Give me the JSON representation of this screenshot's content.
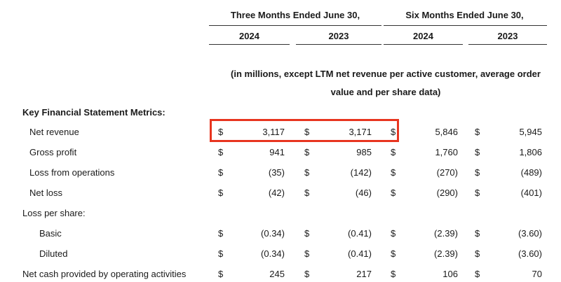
{
  "header": {
    "three_months": "Three Months Ended June 30,",
    "six_months": "Six Months Ended June 30,",
    "years": [
      "2024",
      "2023",
      "2024",
      "2023"
    ]
  },
  "units_note": {
    "line1": "(in millions, except LTM net revenue per active customer, average order",
    "line2": "value and per share data)"
  },
  "section_title": "Key Financial Statement Metrics:",
  "currency_symbol": "$",
  "rows": [
    {
      "label": "Net revenue",
      "values": [
        "3,117",
        "3,171",
        "5,846",
        "5,945"
      ]
    },
    {
      "label": "Gross profit",
      "values": [
        "941",
        "985",
        "1,760",
        "1,806"
      ]
    },
    {
      "label": "Loss from operations",
      "values": [
        "(35)",
        "(142)",
        "(270)",
        "(489)"
      ]
    },
    {
      "label": "Net loss",
      "values": [
        "(42)",
        "(46)",
        "(290)",
        "(401)"
      ]
    },
    {
      "label": "Loss per share:"
    },
    {
      "label": "Basic",
      "values": [
        "(0.34)",
        "(0.41)",
        "(2.39)",
        "(3.60)"
      ]
    },
    {
      "label": "Diluted",
      "values": [
        "(0.34)",
        "(0.41)",
        "(2.39)",
        "(3.60)"
      ]
    },
    {
      "label": "Net cash provided by operating activities",
      "values": [
        "245",
        "217",
        "106",
        "70"
      ]
    }
  ],
  "highlight_color": "#e8351f"
}
